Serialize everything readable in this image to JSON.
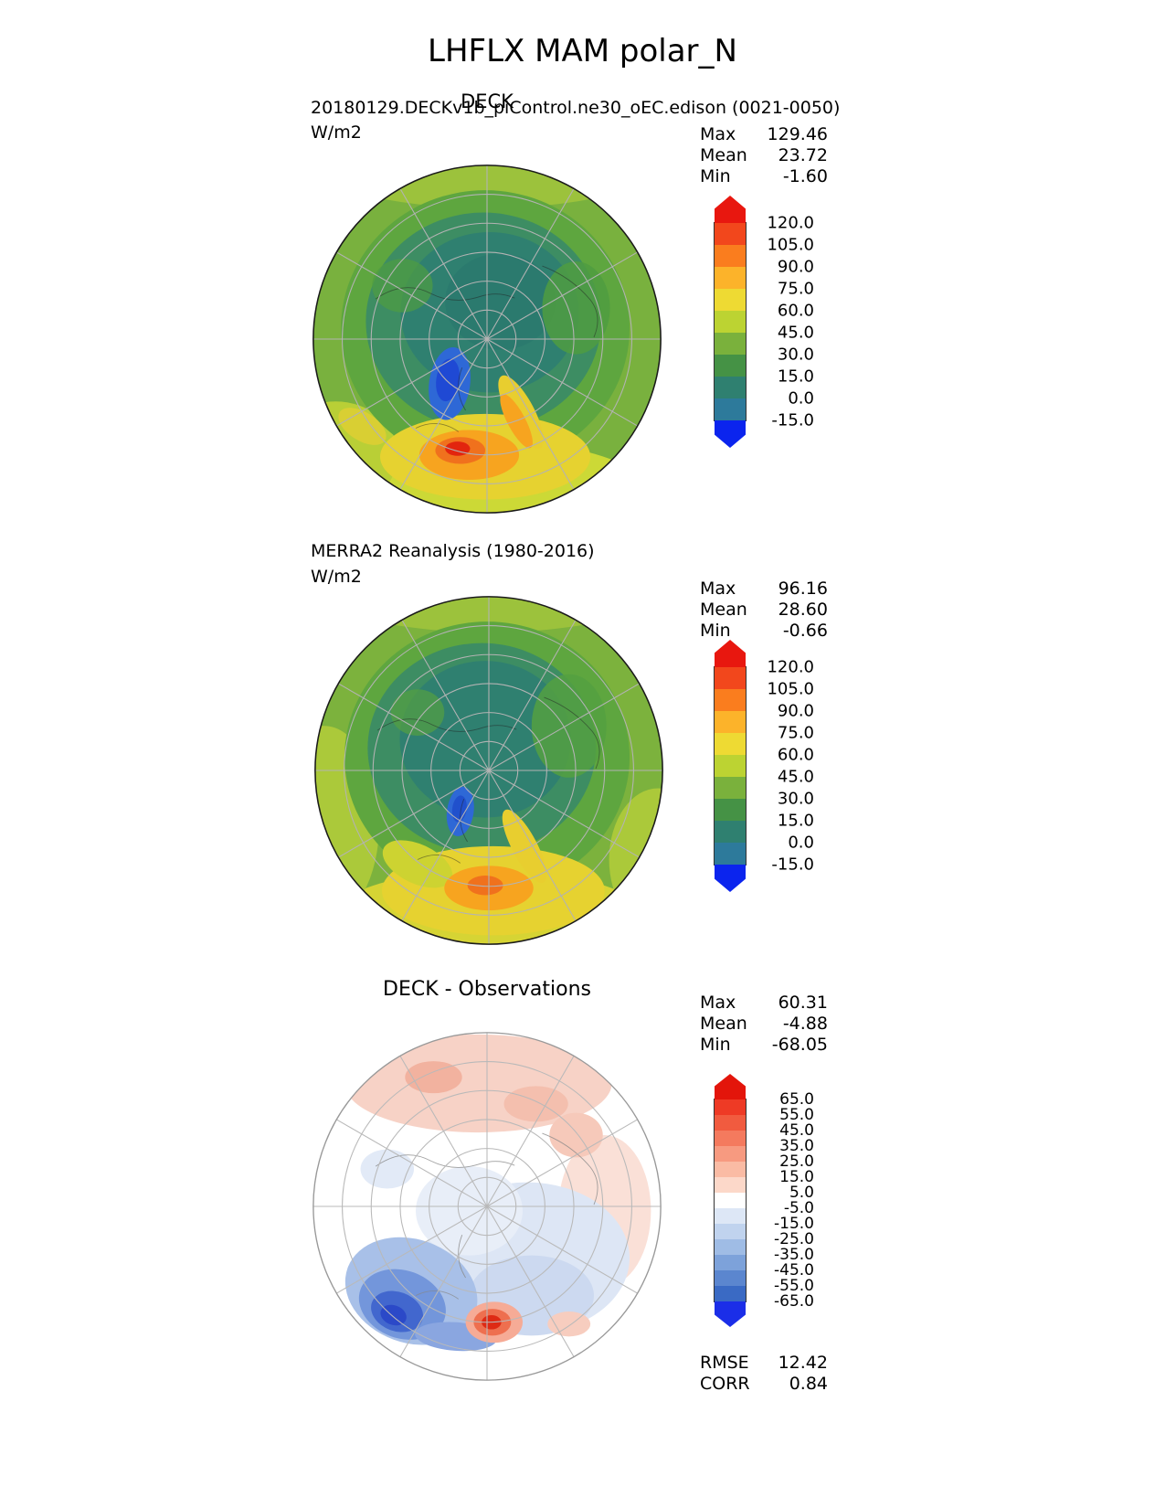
{
  "title": "LHFLX MAM polar_N",
  "panels": [
    {
      "subtitle": "DECK",
      "dataset": "20180129.DECKv1b_piControl.ne30_oEC.edison (0021-0050)",
      "units": "W/m2",
      "stats": [
        {
          "label": "Max",
          "value": "129.46"
        },
        {
          "label": "Mean",
          "value": "23.72"
        },
        {
          "label": "Min",
          "value": "-1.60"
        }
      ],
      "colorbar": {
        "ticks": [
          "120.0",
          "105.0",
          "90.0",
          "75.0",
          "60.0",
          "45.0",
          "30.0",
          "15.0",
          "0.0",
          "-15.0"
        ],
        "arrow_top": "#e8170f",
        "arrow_bottom": "#0b24ee",
        "segment_colors": [
          "#f2471c",
          "#fa7d1e",
          "#fcb32a",
          "#eeda33",
          "#bcd332",
          "#7ab13c",
          "#459245",
          "#2f8070",
          "#2d7a9b"
        ]
      }
    },
    {
      "subtitle": "",
      "dataset": "MERRA2 Reanalysis (1980-2016)",
      "units": "W/m2",
      "stats": [
        {
          "label": "Max",
          "value": "96.16"
        },
        {
          "label": "Mean",
          "value": "28.60"
        },
        {
          "label": "Min",
          "value": "-0.66"
        }
      ],
      "colorbar": {
        "ticks": [
          "120.0",
          "105.0",
          "90.0",
          "75.0",
          "60.0",
          "45.0",
          "30.0",
          "15.0",
          "0.0",
          "-15.0"
        ],
        "arrow_top": "#e8170f",
        "arrow_bottom": "#0b24ee",
        "segment_colors": [
          "#f2471c",
          "#fa7d1e",
          "#fcb32a",
          "#eeda33",
          "#bcd332",
          "#7ab13c",
          "#459245",
          "#2f8070",
          "#2d7a9b"
        ]
      }
    },
    {
      "subtitle": "DECK - Observations",
      "dataset": "",
      "units": "",
      "stats": [
        {
          "label": "Max",
          "value": "60.31"
        },
        {
          "label": "Mean",
          "value": "-4.88"
        },
        {
          "label": "Min",
          "value": "-68.05"
        }
      ],
      "colorbar": {
        "ticks": [
          "65.0",
          "55.0",
          "45.0",
          "35.0",
          "25.0",
          "15.0",
          "5.0",
          "-5.0",
          "-15.0",
          "-25.0",
          "-35.0",
          "-45.0",
          "-55.0",
          "-65.0"
        ],
        "arrow_top": "#e3150b",
        "arrow_bottom": "#1b2ee8",
        "segment_colors": [
          "#ee3a25",
          "#f15b3f",
          "#f47a5e",
          "#f79a80",
          "#fabba4",
          "#fcd8c9",
          "#ffffff",
          "#dde7f6",
          "#c0d3ee",
          "#9fbce5",
          "#7da2da",
          "#5b86cf",
          "#3a6ac4"
        ]
      }
    }
  ],
  "footer": [
    {
      "label": "RMSE",
      "value": "12.42"
    },
    {
      "label": "CORR",
      "value": "0.84"
    }
  ],
  "chart_data": {
    "type": "heatmap",
    "subtype": "north-polar-stereographic-contour-maps",
    "variable": "LHFLX",
    "season": "MAM",
    "region": "polar_N",
    "units": "W/m2",
    "panels": [
      {
        "title": "DECK",
        "dataset": "20180129.DECKv1b_piControl.ne30_oEC.edison (0021-0050)",
        "stats": {
          "max": 129.46,
          "mean": 23.72,
          "min": -1.6
        },
        "contour_levels": [
          -15.0,
          0.0,
          15.0,
          30.0,
          45.0,
          60.0,
          75.0,
          90.0,
          105.0,
          120.0
        ],
        "colormap": "blue-teal-green-yellow-orange-red"
      },
      {
        "title": "MERRA2 Reanalysis (1980-2016)",
        "stats": {
          "max": 96.16,
          "mean": 28.6,
          "min": -0.66
        },
        "contour_levels": [
          -15.0,
          0.0,
          15.0,
          30.0,
          45.0,
          60.0,
          75.0,
          90.0,
          105.0,
          120.0
        ],
        "colormap": "blue-teal-green-yellow-orange-red"
      },
      {
        "title": "DECK - Observations",
        "stats": {
          "max": 60.31,
          "mean": -4.88,
          "min": -68.05,
          "rmse": 12.42,
          "corr": 0.84
        },
        "contour_levels": [
          -65.0,
          -55.0,
          -45.0,
          -35.0,
          -25.0,
          -15.0,
          -5.0,
          5.0,
          15.0,
          25.0,
          35.0,
          45.0,
          55.0,
          65.0
        ],
        "colormap": "blue-white-red-diverging"
      }
    ],
    "layout_hints": {
      "graticule": true,
      "latitude_rings": 5,
      "meridian_step_deg": 30,
      "colorbar_position": "right",
      "stats_position": "top-right"
    }
  }
}
